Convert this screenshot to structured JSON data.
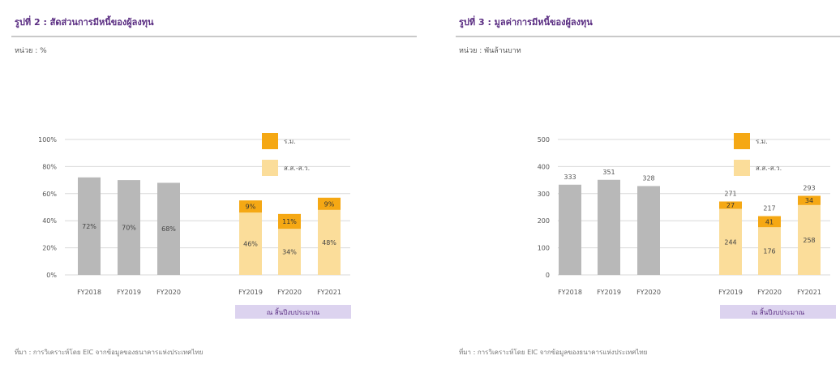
{
  "chart_data": [
    {
      "type": "bar",
      "title": "รูปที่ 2 : สัดส่วนการมีหนี้ของผู้ลงทุน",
      "unit_label": "หน่วย : %",
      "source": "ที่มา : การวิเคราะห์โดย EIC จากข้อมูลของธนาคารแห่งประเทศไทย",
      "yticks": [
        "100%",
        "80%",
        "60%",
        "40%",
        "20%",
        "0%"
      ],
      "ylim": [
        0,
        100
      ],
      "grid": true,
      "categories": [
        "FY2018",
        "FY2019",
        "FY2020",
        "FY2019",
        "FY2020",
        "FY2021"
      ],
      "group_label": "ณ สิ้นปีงบประมาณ",
      "legend_position": "top-right",
      "series": [
        {
          "name": "",
          "type": "total",
          "values": [
            72,
            70,
            68,
            null,
            null,
            null
          ],
          "labels": [
            "72%",
            "70%",
            "68%",
            null,
            null,
            null
          ],
          "color": "#b8b8b8"
        },
        {
          "name": "ส.ส.-ส.ว.",
          "values": [
            null,
            null,
            null,
            46,
            34,
            48
          ],
          "labels": [
            null,
            null,
            null,
            "46%",
            "34%",
            "48%"
          ],
          "color": "#fbdd9a"
        },
        {
          "name": "ร.ม.",
          "values": [
            null,
            null,
            null,
            9,
            11,
            9
          ],
          "labels": [
            null,
            null,
            null,
            "9%",
            "11%",
            "9%"
          ],
          "color": "#f5a814"
        }
      ],
      "bar_labels": [
        "",
        "",
        "",
        "",
        "",
        ""
      ]
    },
    {
      "type": "bar",
      "title": "รูปที่ 3 : มูลค่าการมีหนี้ของผู้ลงทุน",
      "unit_label": "หน่วย : พันล้านบาท",
      "source": "ที่มา : การวิเคราะห์โดย EIC จากข้อมูลของธนาคารแห่งประเทศไทย",
      "yticks": [
        "500",
        "400",
        "300",
        "200",
        "100",
        "0"
      ],
      "ylim": [
        0,
        500
      ],
      "grid": true,
      "categories": [
        "FY2018",
        "FY2019",
        "FY2020",
        "FY2019",
        "FY2020",
        "FY2021"
      ],
      "group_label": "ณ สิ้นปีงบประมาณ",
      "legend_position": "top-right",
      "series": [
        {
          "name": "",
          "type": "total",
          "values": [
            333,
            351,
            328,
            null,
            null,
            null
          ],
          "labels": [
            null,
            null,
            null,
            null,
            null,
            null
          ],
          "color": "#b8b8b8"
        },
        {
          "name": "ส.ส.-ส.ว.",
          "values": [
            null,
            null,
            null,
            244,
            176,
            258
          ],
          "labels": [
            null,
            null,
            null,
            "244",
            "176",
            "258"
          ],
          "color": "#fbdd9a"
        },
        {
          "name": "ร.ม.",
          "values": [
            null,
            null,
            null,
            27,
            41,
            34
          ],
          "labels": [
            null,
            null,
            null,
            "27",
            "41",
            "34"
          ],
          "color": "#f5a814"
        }
      ],
      "bar_labels": [
        "333",
        "351",
        "328",
        "271",
        "217",
        "293"
      ]
    }
  ]
}
